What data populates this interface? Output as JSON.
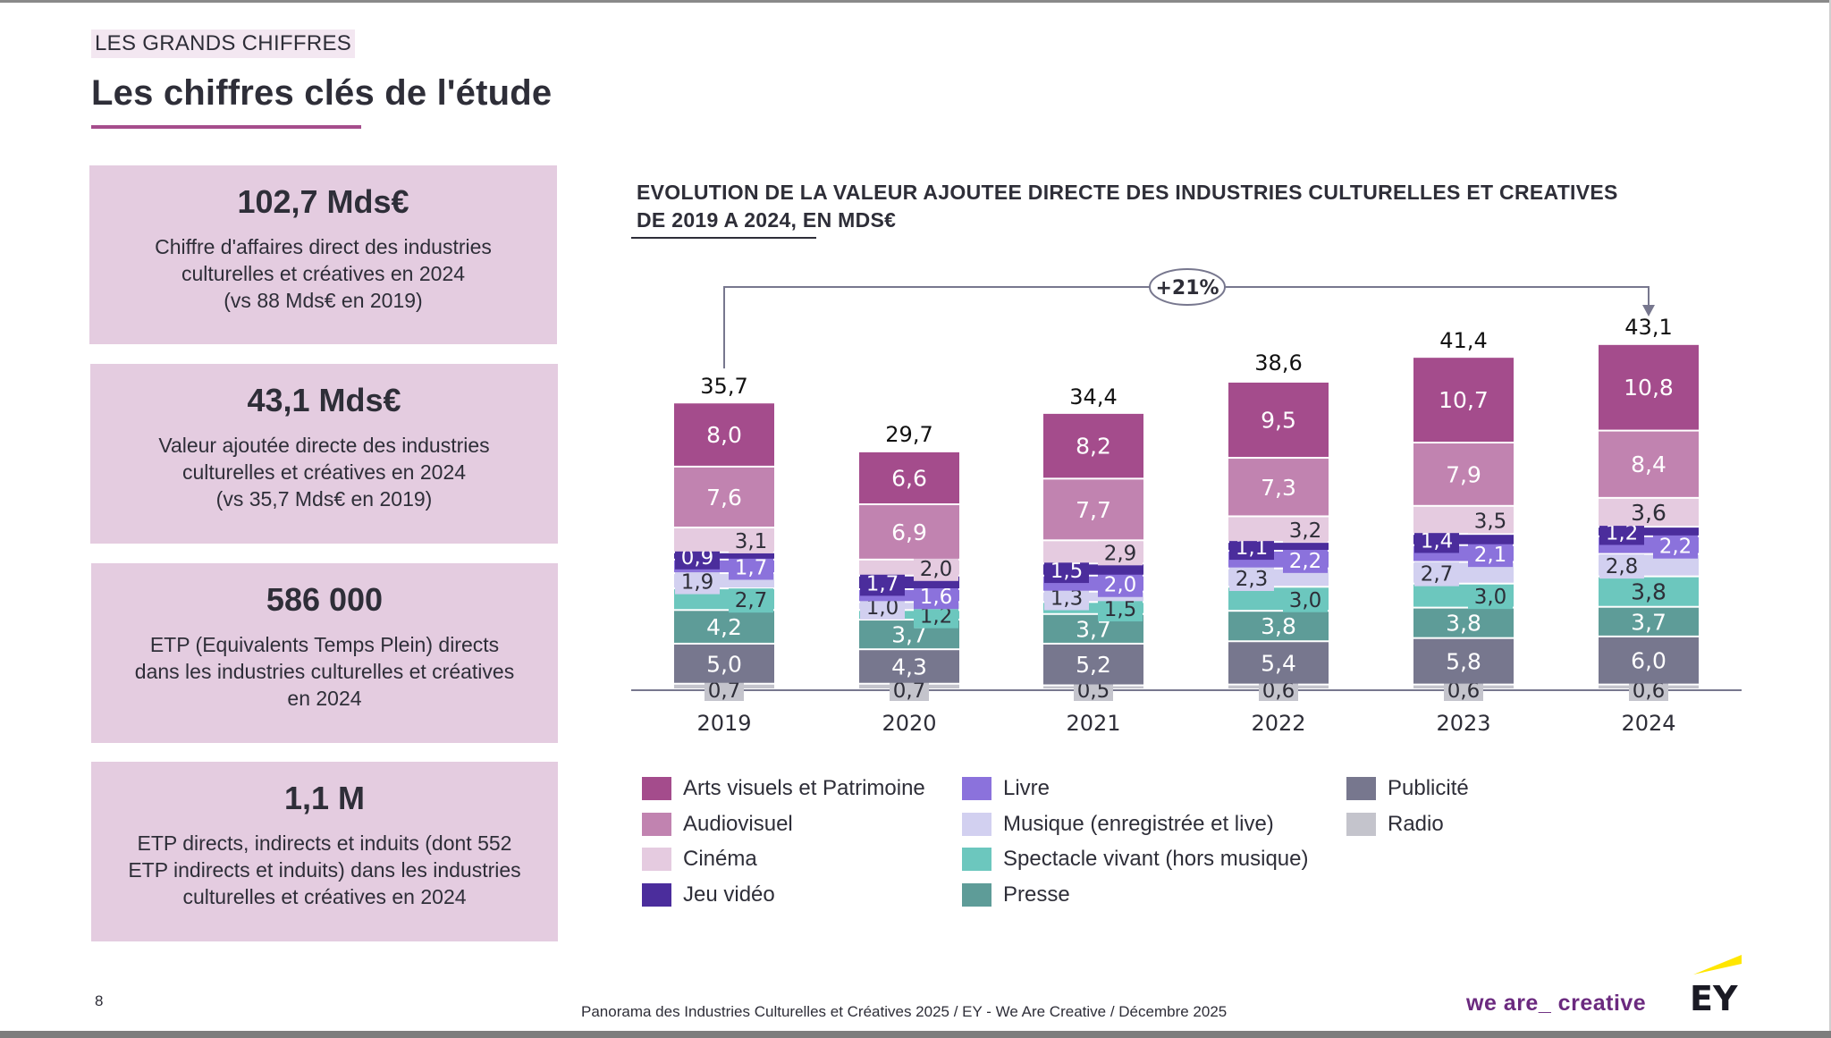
{
  "header": {
    "section_tag": "LES GRANDS CHIFFRES",
    "title": "Les chiffres clés de l'étude"
  },
  "kpis": [
    {
      "value": "102,7 Mds€",
      "desc_lines": [
        "Chiffre d'affaires direct des industries",
        "culturelles et créatives en 2024",
        "(vs 88 Mds€ en 2019)"
      ]
    },
    {
      "value": "43,1 Mds€",
      "desc_lines": [
        "Valeur ajoutée directe des industries",
        "culturelles et créatives en 2024",
        "(vs 35,7 Mds€ en 2019)"
      ]
    },
    {
      "value": "586 000",
      "desc_lines": [
        "ETP (Equivalents Temps Plein) directs",
        "dans les industries culturelles et créatives",
        "en 2024"
      ]
    },
    {
      "value": "1,1 M",
      "desc_lines": [
        "ETP directs, indirects et induits (dont 552",
        "ETP indirects et induits) dans les industries",
        "culturelles et créatives en 2024"
      ]
    }
  ],
  "chart_data": {
    "type": "bar",
    "stacked": true,
    "title_lines": [
      "EVOLUTION DE LA VALEUR AJOUTEE DIRECTE DES INDUSTRIES CULTURELLES ET CREATIVES",
      "DE 2019 A 2024, EN MDS€"
    ],
    "xlabel": "",
    "ylabel": "",
    "unit": "Mds€",
    "categories": [
      "2019",
      "2020",
      "2021",
      "2022",
      "2023",
      "2024"
    ],
    "totals": [
      35.7,
      29.7,
      34.4,
      38.6,
      41.4,
      43.1
    ],
    "total_labels": [
      "35,7",
      "29,7",
      "34,4",
      "38,6",
      "41,4",
      "43,1"
    ],
    "growth_annotation": {
      "label": "+21%",
      "from": "2019",
      "to": "2024"
    },
    "series": [
      {
        "name": "Radio",
        "color": "#c4c4cc",
        "label_color": "#2e2e38",
        "values": [
          0.7,
          0.7,
          0.5,
          0.6,
          0.6,
          0.6
        ],
        "labels": [
          "0,7",
          "0,7",
          "0,5",
          "0,6",
          "0,6",
          "0,6"
        ]
      },
      {
        "name": "Publicité",
        "color": "#77778e",
        "label_color": "#ffffff",
        "values": [
          5.0,
          4.3,
          5.2,
          5.4,
          5.8,
          6.0
        ],
        "labels": [
          "5,0",
          "4,3",
          "5,2",
          "5,4",
          "5,8",
          "6,0"
        ]
      },
      {
        "name": "Presse",
        "color": "#5e9c98",
        "label_color": "#ffffff",
        "values": [
          4.2,
          3.7,
          3.7,
          3.8,
          3.8,
          3.7
        ],
        "labels": [
          "4,2",
          "3,7",
          "3,7",
          "3,8",
          "3,8",
          "3,7"
        ]
      },
      {
        "name": "Spectacle vivant (hors musique)",
        "color": "#6cc7be",
        "label_color": "#2e2e38",
        "values": [
          2.7,
          1.2,
          1.5,
          3.0,
          3.0,
          3.8
        ],
        "labels": [
          "2,7",
          "1,2",
          "1,5",
          "3,0",
          "3,0",
          "3,8"
        ]
      },
      {
        "name": "Musique (enregistrée et live)",
        "color": "#d2d0f0",
        "label_color": "#2e2e38",
        "values": [
          1.9,
          1.0,
          1.3,
          2.3,
          2.7,
          2.8
        ],
        "labels": [
          "1,9",
          "1,0",
          "1,3",
          "2,3",
          "2,7",
          "2,8"
        ]
      },
      {
        "name": "Livre",
        "color": "#8b72dc",
        "label_color": "#ffffff",
        "values": [
          1.7,
          1.6,
          2.0,
          2.2,
          2.1,
          2.2
        ],
        "labels": [
          "1,7",
          "1,6",
          "2,0",
          "2,2",
          "2,1",
          "2,2"
        ]
      },
      {
        "name": "Jeu vidéo",
        "color": "#4b2d9c",
        "label_color": "#ffffff",
        "values": [
          0.9,
          1.7,
          1.5,
          1.1,
          1.4,
          1.2
        ],
        "labels": [
          "0,9",
          "1,7",
          "1,5",
          "1,1",
          "1,4",
          "1,2"
        ]
      },
      {
        "name": "Cinéma",
        "color": "#e5cbe0",
        "label_color": "#2e2e38",
        "values": [
          3.1,
          2.0,
          2.9,
          3.2,
          3.5,
          3.6
        ],
        "labels": [
          "3,1",
          "2,0",
          "2,9",
          "3,2",
          "3,5",
          "3,6"
        ]
      },
      {
        "name": "Audiovisuel",
        "color": "#c183b0",
        "label_color": "#ffffff",
        "values": [
          7.6,
          6.9,
          7.7,
          7.3,
          7.9,
          8.4
        ],
        "labels": [
          "7,6",
          "6,9",
          "7,7",
          "7,3",
          "7,9",
          "8,4"
        ]
      },
      {
        "name": "Arts visuels et Patrimoine",
        "color": "#a44c8c",
        "label_color": "#ffffff",
        "values": [
          8.0,
          6.6,
          8.2,
          9.5,
          10.7,
          10.8
        ],
        "labels": [
          "8,0",
          "6,6",
          "8,2",
          "9,5",
          "10,7",
          "10,8"
        ]
      }
    ],
    "legend": {
      "placement": "bottom",
      "columns": [
        [
          "Arts visuels et Patrimoine",
          "Audiovisuel",
          "Cinéma",
          "Jeu vidéo"
        ],
        [
          "Livre",
          "Musique (enregistrée et live)",
          "Spectacle vivant (hors musique)",
          "Presse"
        ],
        [
          "Publicité",
          "Radio"
        ]
      ]
    },
    "grid": false,
    "ylim": [
      0,
      45
    ]
  },
  "footer": {
    "page_number": "8",
    "source": "Panorama des Industries Culturelles et Créatives 2025 / EY - We Are Creative / Décembre 2025",
    "tagline": "we are_ creative",
    "logo_text": "EY"
  },
  "colors": {
    "accent": "#a64d8c",
    "kpi_background": "#e4cce0",
    "text": "#2e2e38",
    "ey_yellow": "#ffe600"
  }
}
